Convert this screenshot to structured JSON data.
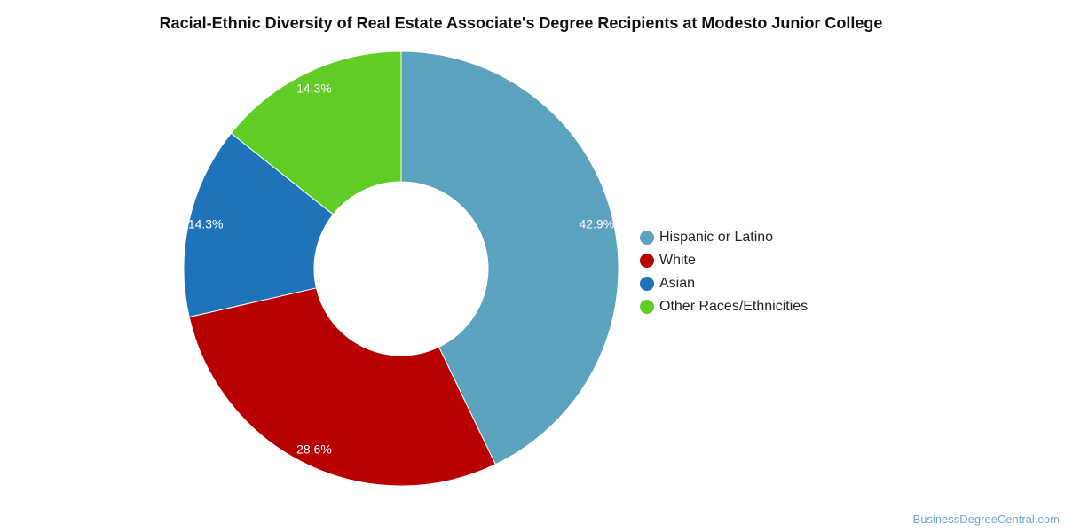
{
  "chart_data": {
    "type": "pie",
    "title": "Racial-Ethnic Diversity of Real Estate Associate's Degree Recipients at Modesto Junior College",
    "donut": true,
    "legend_position": "right",
    "slices": [
      {
        "label": "Hispanic or Latino",
        "value": 42.9,
        "value_label": "42.9%",
        "color": "#5ba2be"
      },
      {
        "label": "White",
        "value": 28.6,
        "value_label": "28.6%",
        "color": "#b80000"
      },
      {
        "label": "Asian",
        "value": 14.3,
        "value_label": "14.3%",
        "color": "#1f74b9"
      },
      {
        "label": "Other Races/Ethnicities",
        "value": 14.3,
        "value_label": "14.3%",
        "color": "#62cc26"
      }
    ]
  },
  "watermark": "BusinessDegreeCentral.com"
}
